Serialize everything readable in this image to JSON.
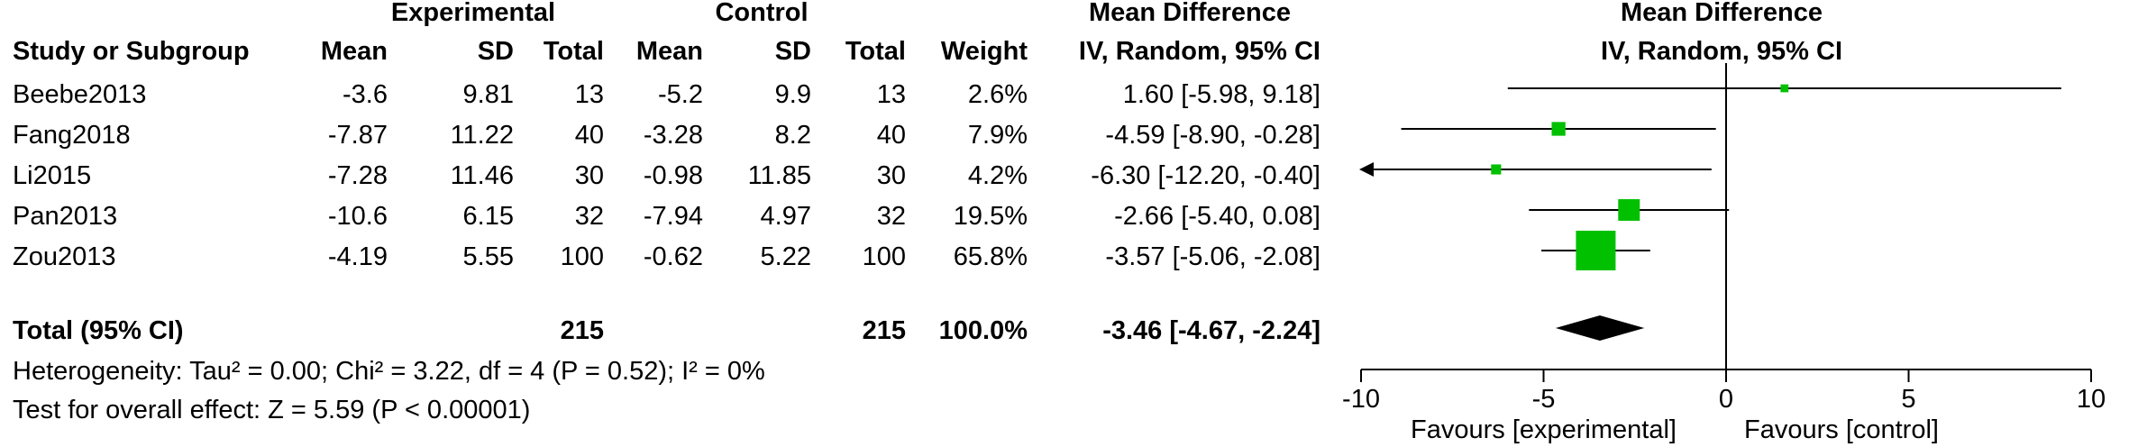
{
  "headers": {
    "experimental": "Experimental",
    "control": "Control",
    "mean_difference_left": "Mean Difference",
    "mean_difference_right": "Mean Difference",
    "study": "Study or Subgroup",
    "exp_mean": "Mean",
    "exp_sd": "SD",
    "exp_total": "Total",
    "ctl_mean": "Mean",
    "ctl_sd": "SD",
    "ctl_total": "Total",
    "weight": "Weight",
    "method_left": "IV, Random, 95% CI",
    "method_right": "IV, Random, 95% CI"
  },
  "studies": [
    {
      "name": "Beebe2013",
      "exp_mean": "-3.6",
      "exp_sd": "9.81",
      "exp_total": "13",
      "ctl_mean": "-5.2",
      "ctl_sd": "9.9",
      "ctl_total": "13",
      "weight": "2.6%",
      "ci_text": "1.60 [-5.98, 9.18]"
    },
    {
      "name": "Fang2018",
      "exp_mean": "-7.87",
      "exp_sd": "11.22",
      "exp_total": "40",
      "ctl_mean": "-3.28",
      "ctl_sd": "8.2",
      "ctl_total": "40",
      "weight": "7.9%",
      "ci_text": "-4.59 [-8.90, -0.28]"
    },
    {
      "name": "Li2015",
      "exp_mean": "-7.28",
      "exp_sd": "11.46",
      "exp_total": "30",
      "ctl_mean": "-0.98",
      "ctl_sd": "11.85",
      "ctl_total": "30",
      "weight": "4.2%",
      "ci_text": "-6.30 [-12.20, -0.40]"
    },
    {
      "name": "Pan2013",
      "exp_mean": "-10.6",
      "exp_sd": "6.15",
      "exp_total": "32",
      "ctl_mean": "-7.94",
      "ctl_sd": "4.97",
      "ctl_total": "32",
      "weight": "19.5%",
      "ci_text": "-2.66 [-5.40, 0.08]"
    },
    {
      "name": "Zou2013",
      "exp_mean": "-4.19",
      "exp_sd": "5.55",
      "exp_total": "100",
      "ctl_mean": "-0.62",
      "ctl_sd": "5.22",
      "ctl_total": "100",
      "weight": "65.8%",
      "ci_text": "-3.57 [-5.06, -2.08]"
    }
  ],
  "total": {
    "label": "Total (95% CI)",
    "exp_total": "215",
    "ctl_total": "215",
    "weight": "100.0%",
    "ci_text": "-3.46 [-4.67, -2.24]"
  },
  "heterogeneity": "Heterogeneity: Tau² = 0.00; Chi² = 3.22, df = 4 (P = 0.52); I² = 0%",
  "overall_effect": "Test for overall effect: Z = 5.59 (P < 0.00001)",
  "favours_left": "Favours [experimental]",
  "favours_right": "Favours [control]",
  "colors": {
    "marker": "#00c000",
    "diamond": "#000000",
    "line": "#000000"
  },
  "chart_data": {
    "type": "forest",
    "title": "Mean Difference",
    "xlabel": "IV, Random, 95% CI",
    "xlim": [
      -10,
      10
    ],
    "x_ticks": [
      -10,
      -5,
      0,
      5,
      10
    ],
    "x_tick_labels": [
      "-10",
      "-5",
      "0",
      "5",
      "10"
    ],
    "categories": [
      "Beebe2013",
      "Fang2018",
      "Li2015",
      "Pan2013",
      "Zou2013"
    ],
    "series": [
      {
        "values": [
          1.6,
          -4.59,
          -6.3,
          -2.66,
          -3.57
        ],
        "ci_lower": [
          -5.98,
          -8.9,
          -12.2,
          -5.4,
          -5.06
        ],
        "ci_upper": [
          9.18,
          -0.28,
          -0.4,
          0.08,
          -2.08
        ],
        "weights": [
          2.6,
          7.9,
          4.2,
          19.5,
          65.8
        ]
      }
    ],
    "pooled": {
      "value": -3.46,
      "ci_lower": -4.67,
      "ci_upper": -2.24
    }
  }
}
